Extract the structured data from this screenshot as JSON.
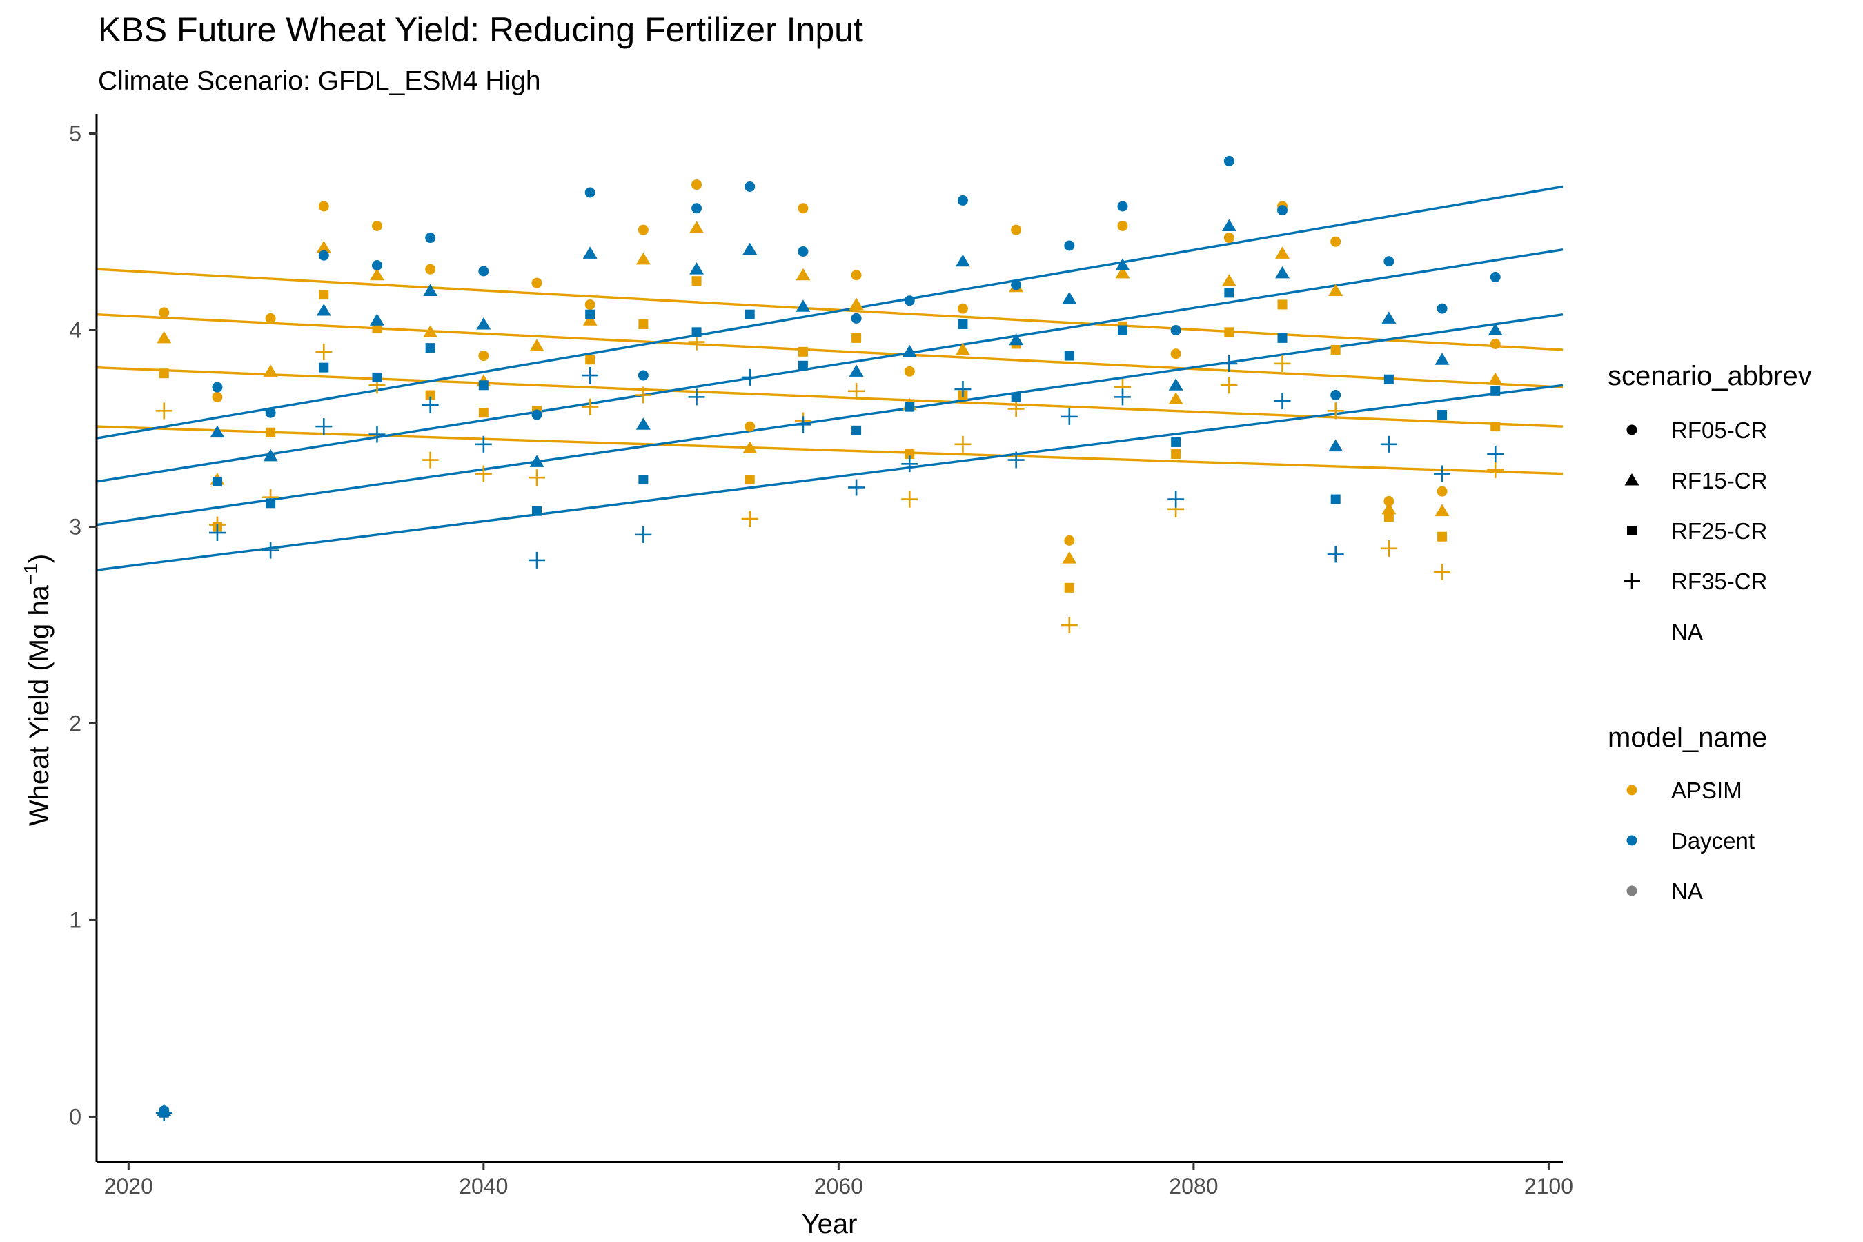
{
  "chart_data": {
    "type": "scatter",
    "title": "KBS Future Wheat Yield: Reducing Fertilizer Input",
    "subtitle": "Climate Scenario: GFDL_ESM4 High",
    "xlabel": "Year",
    "ylabel": "Wheat Yield (Mg ha",
    "ylabel_superscript": "−1",
    "ylabel_suffix": ")",
    "xlim": [
      2018.2,
      2100.8
    ],
    "ylim": [
      -0.23,
      5.1
    ],
    "x_ticks": [
      2020,
      2040,
      2060,
      2080,
      2100
    ],
    "y_ticks": [
      0,
      1,
      2,
      3,
      4,
      5
    ],
    "grid": false,
    "legend_position": "right",
    "legends": [
      {
        "title": "scenario_abbrev",
        "entries": [
          {
            "label": "RF05-CR",
            "shape": "circle"
          },
          {
            "label": "RF15-CR",
            "shape": "triangle"
          },
          {
            "label": "RF25-CR",
            "shape": "square"
          },
          {
            "label": "RF35-CR",
            "shape": "plus"
          },
          {
            "label": "NA",
            "shape": "none"
          }
        ]
      },
      {
        "title": "model_name",
        "entries": [
          {
            "label": "APSIM",
            "color": "#E69F00"
          },
          {
            "label": "Daycent",
            "color": "#0072B2"
          },
          {
            "label": "NA",
            "color": "#808080"
          }
        ]
      }
    ],
    "colors": {
      "APSIM": "#E69F00",
      "Daycent": "#0072B2"
    },
    "x": [
      2022,
      2025,
      2028,
      2031,
      2034,
      2037,
      2040,
      2043,
      2046,
      2049,
      2052,
      2055,
      2058,
      2061,
      2064,
      2067,
      2070,
      2073,
      2076,
      2079,
      2082,
      2085,
      2088,
      2091,
      2094,
      2097
    ],
    "series": [
      {
        "model": "APSIM",
        "scenario": "RF05-CR",
        "values": [
          4.09,
          3.66,
          4.06,
          4.63,
          4.53,
          4.31,
          3.87,
          4.24,
          4.13,
          4.51,
          4.74,
          3.51,
          4.62,
          4.28,
          3.79,
          4.11,
          4.51,
          2.93,
          4.53,
          3.88,
          4.47,
          4.63,
          4.45,
          3.13,
          3.18,
          3.93
        ]
      },
      {
        "model": "APSIM",
        "scenario": "RF15-CR",
        "values": [
          3.96,
          3.24,
          3.79,
          4.42,
          4.28,
          3.99,
          3.74,
          3.92,
          4.05,
          4.36,
          4.52,
          3.4,
          4.28,
          4.13,
          3.62,
          3.9,
          4.22,
          2.84,
          4.29,
          3.65,
          4.25,
          4.39,
          4.2,
          3.09,
          3.08,
          3.75
        ]
      },
      {
        "model": "APSIM",
        "scenario": "RF25-CR",
        "values": [
          3.78,
          3.0,
          3.48,
          4.18,
          4.01,
          3.67,
          3.58,
          3.59,
          3.85,
          4.03,
          4.25,
          3.24,
          3.89,
          3.96,
          3.37,
          3.67,
          3.93,
          2.69,
          4.02,
          3.37,
          3.99,
          4.13,
          3.9,
          3.05,
          2.95,
          3.51
        ]
      },
      {
        "model": "APSIM",
        "scenario": "RF35-CR",
        "values": [
          3.59,
          3.01,
          3.15,
          3.89,
          3.72,
          3.34,
          3.27,
          3.25,
          3.61,
          3.67,
          3.94,
          3.04,
          3.54,
          3.69,
          3.14,
          3.42,
          3.6,
          2.5,
          3.71,
          3.09,
          3.72,
          3.83,
          3.59,
          2.89,
          2.77,
          3.29
        ]
      },
      {
        "model": "Daycent",
        "scenario": "RF05-CR",
        "values": [
          0.03,
          3.71,
          3.58,
          4.38,
          4.33,
          4.47,
          4.3,
          3.57,
          4.7,
          3.77,
          4.62,
          4.73,
          4.4,
          4.06,
          4.15,
          4.66,
          4.23,
          4.43,
          4.63,
          4.0,
          4.86,
          4.61,
          3.67,
          4.35,
          4.11,
          4.27
        ]
      },
      {
        "model": "Daycent",
        "scenario": "RF15-CR",
        "values": [
          0.03,
          3.48,
          3.36,
          4.1,
          4.05,
          4.2,
          4.03,
          3.33,
          4.39,
          3.52,
          4.31,
          4.41,
          4.12,
          3.79,
          3.89,
          4.35,
          3.95,
          4.16,
          4.33,
          3.72,
          4.53,
          4.29,
          3.41,
          4.06,
          3.85,
          4.0
        ]
      },
      {
        "model": "Daycent",
        "scenario": "RF25-CR",
        "values": [
          0.02,
          3.23,
          3.12,
          3.81,
          3.76,
          3.91,
          3.72,
          3.08,
          4.08,
          3.24,
          3.99,
          4.08,
          3.82,
          3.49,
          3.61,
          4.03,
          3.66,
          3.87,
          4.0,
          3.43,
          4.19,
          3.96,
          3.14,
          3.75,
          3.57,
          3.69
        ]
      },
      {
        "model": "Daycent",
        "scenario": "RF35-CR",
        "values": [
          0.02,
          2.97,
          2.88,
          3.51,
          3.47,
          3.62,
          3.42,
          2.83,
          3.77,
          2.96,
          3.66,
          3.76,
          3.52,
          3.2,
          3.32,
          3.7,
          3.34,
          3.56,
          3.66,
          3.14,
          3.83,
          3.64,
          2.86,
          3.42,
          3.27,
          3.37
        ]
      }
    ],
    "trend_lines": [
      {
        "model": "APSIM",
        "scenario": "RF05-CR",
        "x": [
          2018.2,
          2100.8
        ],
        "y": [
          4.31,
          3.9
        ]
      },
      {
        "model": "APSIM",
        "scenario": "RF15-CR",
        "x": [
          2018.2,
          2100.8
        ],
        "y": [
          4.08,
          3.71
        ]
      },
      {
        "model": "APSIM",
        "scenario": "RF25-CR",
        "x": [
          2018.2,
          2100.8
        ],
        "y": [
          3.81,
          3.51
        ]
      },
      {
        "model": "APSIM",
        "scenario": "RF35-CR",
        "x": [
          2018.2,
          2100.8
        ],
        "y": [
          3.51,
          3.27
        ]
      },
      {
        "model": "Daycent",
        "scenario": "RF05-CR",
        "x": [
          2018.2,
          2100.8
        ],
        "y": [
          3.45,
          4.73
        ]
      },
      {
        "model": "Daycent",
        "scenario": "RF15-CR",
        "x": [
          2018.2,
          2100.8
        ],
        "y": [
          3.23,
          4.41
        ]
      },
      {
        "model": "Daycent",
        "scenario": "RF25-CR",
        "x": [
          2018.2,
          2100.8
        ],
        "y": [
          3.01,
          4.08
        ]
      },
      {
        "model": "Daycent",
        "scenario": "RF35-CR",
        "x": [
          2018.2,
          2100.8
        ],
        "y": [
          2.78,
          3.72
        ]
      }
    ]
  }
}
